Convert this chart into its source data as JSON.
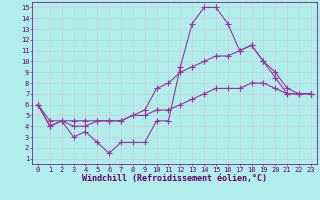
{
  "background_color": "#b2eded",
  "line_color": "#993399",
  "grid_color": "#cccccc",
  "xlabel": "Windchill (Refroidissement éolien,°C)",
  "xlabel_color": "#660066",
  "tick_color": "#660066",
  "x_ticks": [
    0,
    1,
    2,
    3,
    4,
    5,
    6,
    7,
    8,
    9,
    10,
    11,
    12,
    13,
    14,
    15,
    16,
    17,
    18,
    19,
    20,
    21,
    22,
    23
  ],
  "y_ticks": [
    1,
    2,
    3,
    4,
    5,
    6,
    7,
    8,
    9,
    10,
    11,
    12,
    13,
    14,
    15
  ],
  "xlim": [
    -0.5,
    23.5
  ],
  "ylim": [
    0.5,
    15.5
  ],
  "line1_x": [
    0,
    1,
    2,
    3,
    4,
    5,
    6,
    7,
    8,
    9,
    10,
    11,
    12,
    13,
    14,
    15,
    16,
    17,
    18,
    19,
    20,
    21,
    22,
    23
  ],
  "line1_y": [
    6.0,
    4.0,
    4.5,
    3.0,
    3.5,
    2.5,
    1.5,
    2.5,
    2.5,
    2.5,
    4.5,
    4.5,
    9.5,
    13.5,
    15.0,
    15.0,
    13.5,
    11.0,
    11.5,
    10.0,
    8.5,
    7.0,
    7.0,
    7.0
  ],
  "line2_x": [
    0,
    1,
    2,
    3,
    4,
    5,
    6,
    7,
    8,
    9,
    10,
    11,
    12,
    13,
    14,
    15,
    16,
    17,
    18,
    19,
    20,
    21,
    22,
    23
  ],
  "line2_y": [
    6.0,
    4.0,
    4.5,
    4.0,
    4.0,
    4.5,
    4.5,
    4.5,
    5.0,
    5.5,
    7.5,
    8.0,
    9.0,
    9.5,
    10.0,
    10.5,
    10.5,
    11.0,
    11.5,
    10.0,
    9.0,
    7.5,
    7.0,
    7.0
  ],
  "line3_x": [
    0,
    1,
    2,
    3,
    4,
    5,
    6,
    7,
    8,
    9,
    10,
    11,
    12,
    13,
    14,
    15,
    16,
    17,
    18,
    19,
    20,
    21,
    22,
    23
  ],
  "line3_y": [
    6.0,
    4.5,
    4.5,
    4.5,
    4.5,
    4.5,
    4.5,
    4.5,
    5.0,
    5.0,
    5.5,
    5.5,
    6.0,
    6.5,
    7.0,
    7.5,
    7.5,
    7.5,
    8.0,
    8.0,
    7.5,
    7.0,
    7.0,
    7.0
  ],
  "marker": "+",
  "markersize": 4,
  "linewidth": 0.8,
  "tick_fontsize": 5,
  "xlabel_fontsize": 6
}
